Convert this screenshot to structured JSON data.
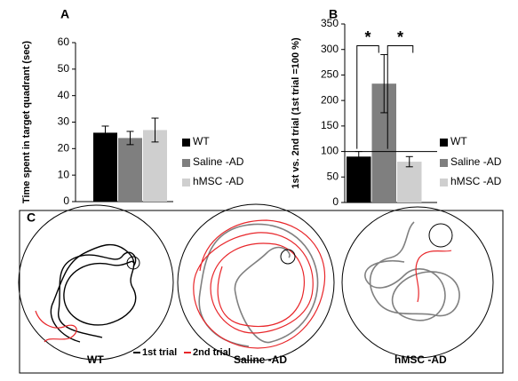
{
  "chart_data": [
    {
      "type": "bar",
      "label": "A",
      "ylabel": "Time spent in target quadrant  (sec)",
      "categories": [
        "WT",
        "Saline -AD",
        "hMSC -AD"
      ],
      "values": [
        26,
        24,
        27
      ],
      "errors": [
        2.5,
        2.5,
        4.5
      ],
      "colors": [
        "#000000",
        "#7f7f7f",
        "#cfcfcf"
      ],
      "ylim": [
        0,
        60
      ],
      "yticks": [
        0,
        10,
        20,
        30,
        40,
        50,
        60
      ]
    },
    {
      "type": "bar",
      "label": "B",
      "ylabel": "1st vs. 2nd trial (1st trial =100 %)",
      "categories": [
        "WT",
        "Saline -AD",
        "hMSC -AD"
      ],
      "values": [
        90,
        233,
        80
      ],
      "errors": [
        10,
        57,
        10
      ],
      "colors": [
        "#000000",
        "#7f7f7f",
        "#cfcfcf"
      ],
      "ylim": [
        0,
        350
      ],
      "yticks": [
        0,
        50,
        100,
        150,
        200,
        250,
        300,
        350
      ],
      "reference_line": 100,
      "annotations": [
        "*",
        "*"
      ]
    }
  ],
  "panel_c": {
    "label": "C",
    "arenas": [
      "WT",
      "Saline -AD",
      "hMSC -AD"
    ],
    "legend": [
      "1st trial",
      "2nd trial"
    ]
  }
}
